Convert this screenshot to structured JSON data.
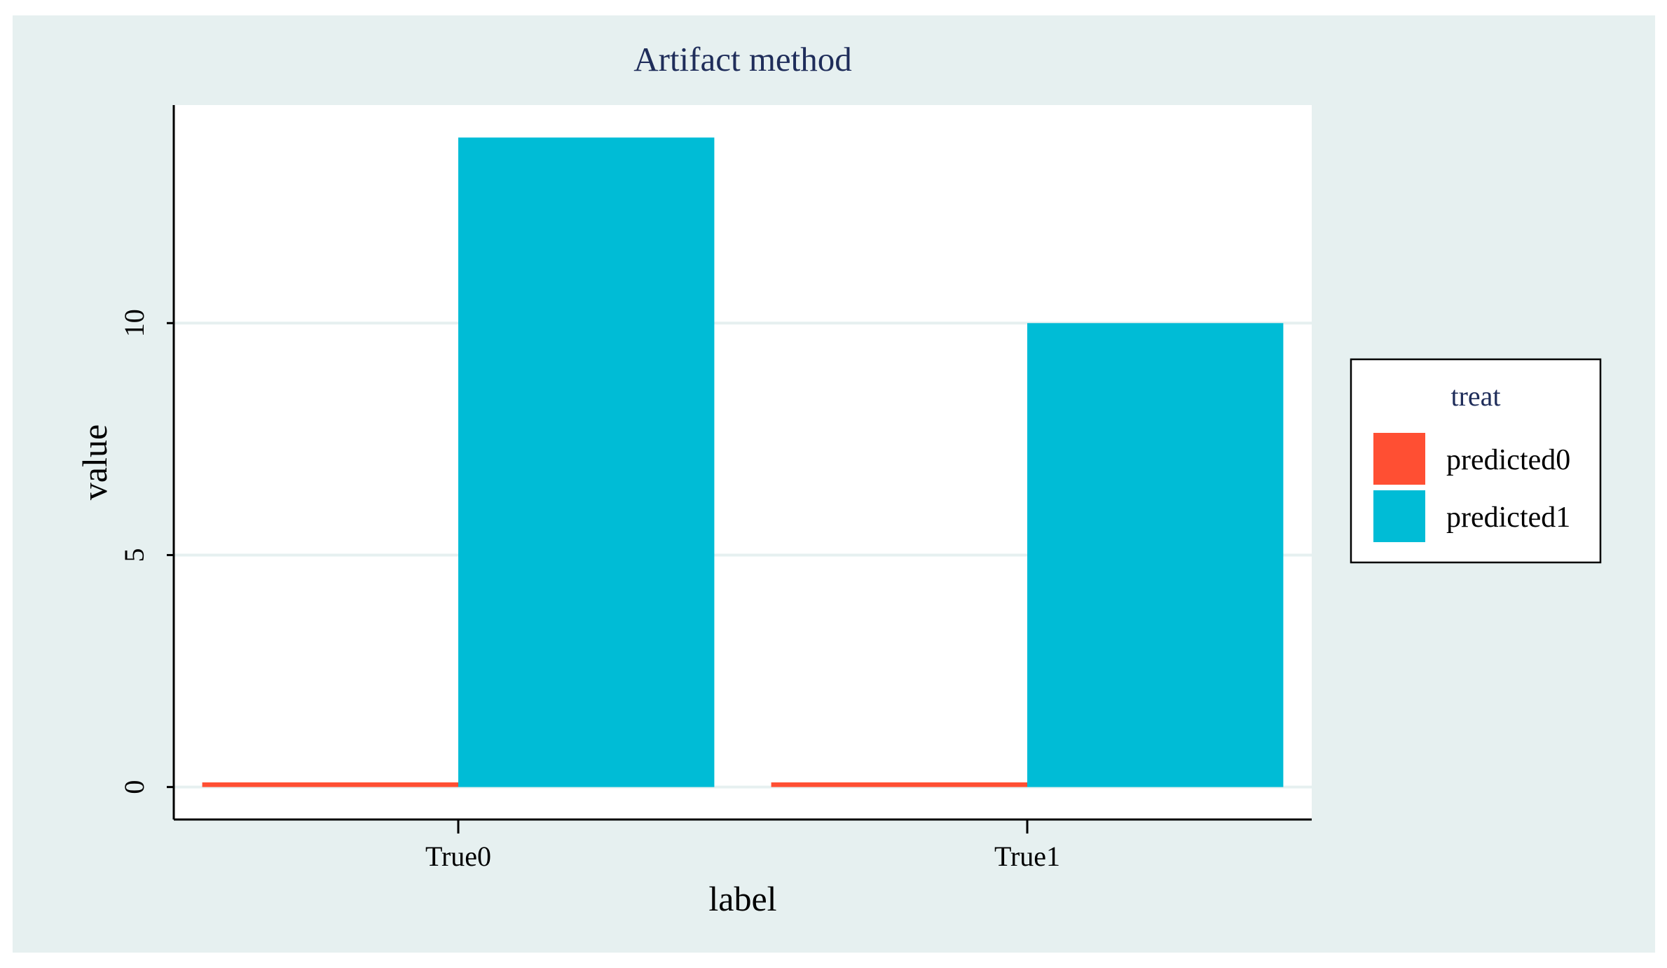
{
  "colors": {
    "background": "#e6f0f0",
    "plot_background": "#ffffff",
    "title": "#1f2d5a",
    "predicted0": "#ff4f33",
    "predicted1": "#00bcd6",
    "gridline": "#e6f0f0",
    "axis": "#000000"
  },
  "chart_data": {
    "type": "bar",
    "title": "Artifact method",
    "xlabel": "label",
    "ylabel": "value",
    "categories": [
      "True0",
      "True1"
    ],
    "series": [
      {
        "name": "predicted0",
        "values": [
          0.1,
          0.1
        ],
        "color": "#ff4f33"
      },
      {
        "name": "predicted1",
        "values": [
          14,
          10
        ],
        "color": "#00bcd6"
      }
    ],
    "ylim": [
      -0.7,
      14.7
    ],
    "yticks": [
      0,
      5,
      10
    ],
    "grid": "horizontal",
    "legend": {
      "title": "treat",
      "placement": "right",
      "entries": [
        "predicted0",
        "predicted1"
      ]
    }
  }
}
